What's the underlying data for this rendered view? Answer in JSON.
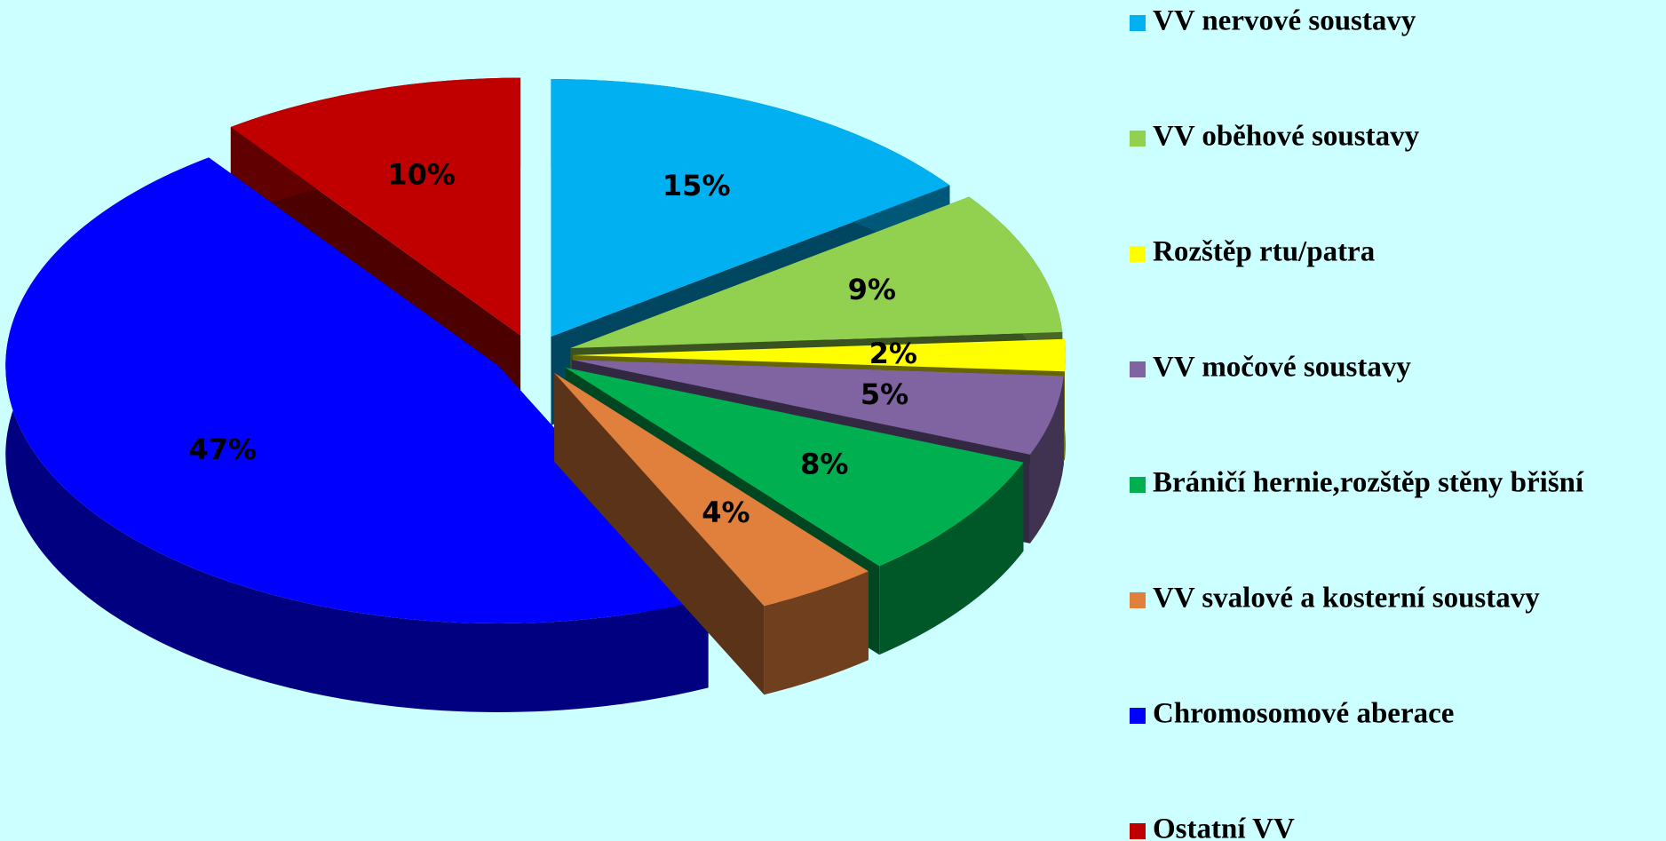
{
  "chart_data": {
    "type": "pie",
    "categories": [
      "VV nervové soustavy",
      "VV oběhové soustavy",
      "Rozštěp rtu/patra",
      "VV močové soustavy",
      "Bráničí hernie,rozštěp stěny břišní",
      "VV svalové a kosterní soustavy",
      "Chromosomové aberace",
      "Ostatní VV"
    ],
    "values": [
      15,
      9,
      2,
      5,
      8,
      4,
      47,
      10
    ],
    "value_labels": [
      "15%",
      "9%",
      "2%",
      "5%",
      "8%",
      "4%",
      "47%",
      "10%"
    ],
    "colors": [
      "#00b0f0",
      "#92d050",
      "#ffff00",
      "#8064a2",
      "#00b050",
      "#e0803c",
      "#0000ff",
      "#c00000"
    ],
    "legend": "right"
  }
}
